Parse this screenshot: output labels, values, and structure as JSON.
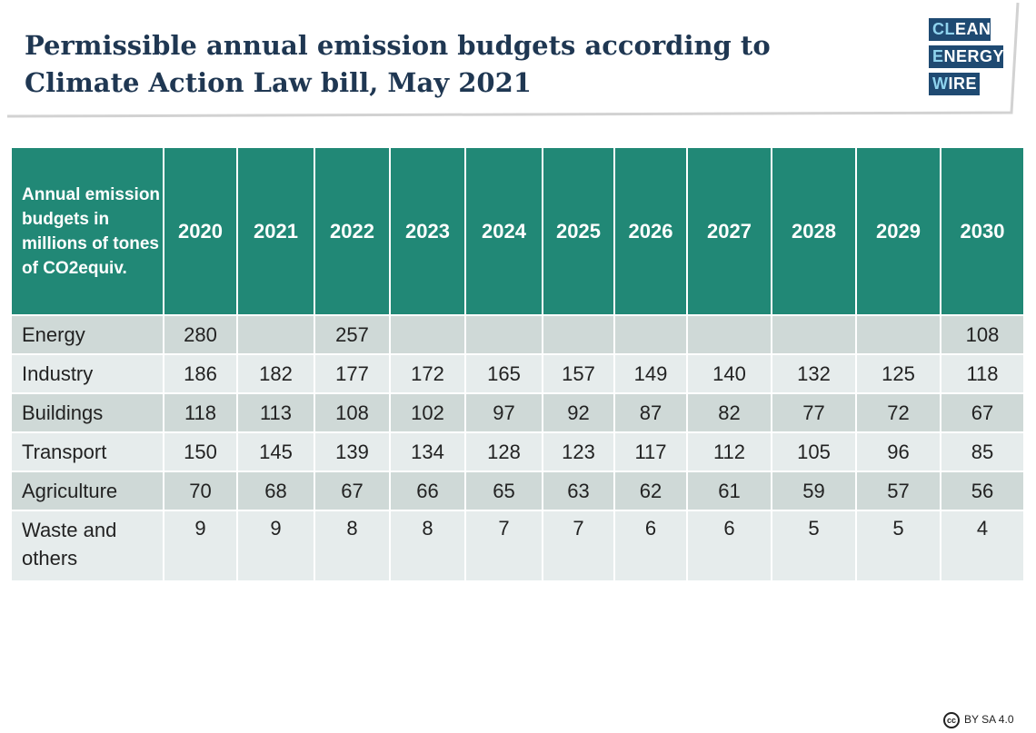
{
  "title": "Permissible annual emission budgets according to Climate Action Law bill, May 2021",
  "logo": {
    "line1_a": "CL",
    "line1_b": "EAN",
    "line2_a": "E",
    "line2_b": "NERGY",
    "line3_a": "W",
    "line3_b": "IRE"
  },
  "table": {
    "label_header": "Annual emission budgets in millions of tones of CO2equiv.",
    "years": [
      "2020",
      "2021",
      "2022",
      "2023",
      "2024",
      "2025",
      "2026",
      "2027",
      "2028",
      "2029",
      "2030"
    ],
    "rows": [
      {
        "label": "Energy",
        "values": [
          "280",
          "",
          "257",
          "",
          "",
          "",
          "",
          "",
          "",
          "",
          "108"
        ]
      },
      {
        "label": "Industry",
        "values": [
          "186",
          "182",
          "177",
          "172",
          "165",
          "157",
          "149",
          "140",
          "132",
          "125",
          "118"
        ]
      },
      {
        "label": "Buildings",
        "values": [
          "118",
          "113",
          "108",
          "102",
          "97",
          "92",
          "87",
          "82",
          "77",
          "72",
          "67"
        ]
      },
      {
        "label": "Transport",
        "values": [
          "150",
          "145",
          "139",
          "134",
          "128",
          "123",
          "117",
          "112",
          "105",
          "96",
          "85"
        ]
      },
      {
        "label": "Agriculture",
        "values": [
          "70",
          "68",
          "67",
          "66",
          "65",
          "63",
          "62",
          "61",
          "59",
          "57",
          "56"
        ]
      },
      {
        "label": "Waste and others",
        "values": [
          "9",
          "9",
          "8",
          "8",
          "7",
          "7",
          "6",
          "6",
          "5",
          "5",
          "4"
        ]
      }
    ]
  },
  "license": {
    "cc_symbol": "cc",
    "text": "BY SA 4.0"
  }
}
